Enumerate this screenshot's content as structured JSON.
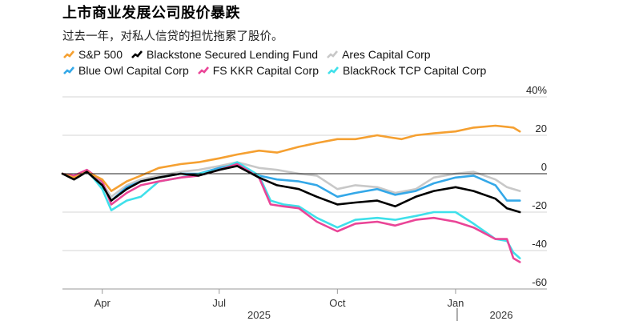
{
  "title": "上市商业发展公司股价暴跌",
  "subtitle": "过去一年，对私人信贷的担忧拖累了股价。",
  "colors": {
    "sp500": "#f5a031",
    "blackstone": "#000000",
    "ares": "#c8c8c8",
    "blueowl": "#34a8e8",
    "fskkr": "#ea4597",
    "blackrock": "#3fe0ea",
    "grid": "#d6d6d6",
    "zero": "#222222"
  },
  "chart_data": {
    "type": "line",
    "ylabel": "",
    "xlabel": "",
    "y_ticks": [
      "40%",
      "20",
      "0",
      "-20",
      "-40",
      "-60"
    ],
    "y_tick_values": [
      40,
      20,
      0,
      -20,
      -40,
      -60
    ],
    "ylim": [
      -60,
      40
    ],
    "x_ticks": [
      "Apr",
      "Jul",
      "Oct",
      "Jan"
    ],
    "x_tick_values": [
      "2025-04-01",
      "2025-07-01",
      "2025-10-01",
      "2026-01-01"
    ],
    "year_labels": [
      "2025",
      "2026"
    ],
    "xlim": [
      "2025-03-01",
      "2026-02-28"
    ],
    "series": [
      {
        "name": "S&P 500",
        "key": "sp500",
        "x": [
          "2025-03-01",
          "2025-03-10",
          "2025-03-20",
          "2025-04-01",
          "2025-04-08",
          "2025-04-20",
          "2025-05-01",
          "2025-05-15",
          "2025-06-01",
          "2025-06-15",
          "2025-07-01",
          "2025-07-15",
          "2025-08-01",
          "2025-08-15",
          "2025-09-01",
          "2025-09-15",
          "2025-10-01",
          "2025-10-15",
          "2025-11-01",
          "2025-11-10",
          "2025-11-20",
          "2025-12-01",
          "2025-12-15",
          "2026-01-01",
          "2026-01-15",
          "2026-02-01",
          "2026-02-15",
          "2026-02-20"
        ],
        "values": [
          0,
          -2,
          1,
          -3,
          -9,
          -4,
          -1,
          3,
          5,
          6,
          8,
          10,
          12,
          11,
          14,
          16,
          18,
          18,
          20,
          19,
          18,
          20,
          21,
          22,
          24,
          25,
          24,
          22
        ]
      },
      {
        "name": "Blackstone Secured Lending Fund",
        "key": "blackstone",
        "x": [
          "2025-03-01",
          "2025-03-10",
          "2025-03-20",
          "2025-04-01",
          "2025-04-08",
          "2025-04-20",
          "2025-05-01",
          "2025-05-15",
          "2025-06-01",
          "2025-06-15",
          "2025-07-01",
          "2025-07-15",
          "2025-08-01",
          "2025-08-15",
          "2025-09-01",
          "2025-09-15",
          "2025-10-01",
          "2025-10-15",
          "2025-11-01",
          "2025-11-15",
          "2025-12-01",
          "2025-12-15",
          "2026-01-01",
          "2026-01-15",
          "2026-02-01",
          "2026-02-10",
          "2026-02-20"
        ],
        "values": [
          0,
          -3,
          1,
          -6,
          -14,
          -8,
          -4,
          -2,
          0,
          -1,
          2,
          4,
          -2,
          -6,
          -8,
          -12,
          -16,
          -15,
          -14,
          -17,
          -12,
          -9,
          -7,
          -9,
          -13,
          -18,
          -20
        ]
      },
      {
        "name": "Ares Capital Corp",
        "key": "ares",
        "x": [
          "2025-03-01",
          "2025-03-10",
          "2025-03-20",
          "2025-04-01",
          "2025-04-08",
          "2025-04-20",
          "2025-05-01",
          "2025-05-15",
          "2025-06-01",
          "2025-06-15",
          "2025-07-01",
          "2025-07-15",
          "2025-08-01",
          "2025-08-15",
          "2025-09-01",
          "2025-09-15",
          "2025-10-01",
          "2025-10-15",
          "2025-11-01",
          "2025-11-15",
          "2025-12-01",
          "2025-12-15",
          "2026-01-01",
          "2026-01-15",
          "2026-02-01",
          "2026-02-10",
          "2026-02-20"
        ],
        "values": [
          0,
          -2,
          2,
          -5,
          -12,
          -6,
          -3,
          -1,
          1,
          2,
          4,
          6,
          3,
          2,
          0,
          -1,
          -8,
          -6,
          -7,
          -10,
          -8,
          -2,
          0,
          1,
          -3,
          -7,
          -9
        ]
      },
      {
        "name": "Blue Owl Capital Corp",
        "key": "blueowl",
        "x": [
          "2025-03-01",
          "2025-03-10",
          "2025-03-20",
          "2025-04-01",
          "2025-04-08",
          "2025-04-20",
          "2025-05-01",
          "2025-05-15",
          "2025-06-01",
          "2025-06-15",
          "2025-07-01",
          "2025-07-15",
          "2025-08-01",
          "2025-08-15",
          "2025-09-01",
          "2025-09-15",
          "2025-10-01",
          "2025-10-15",
          "2025-11-01",
          "2025-11-15",
          "2025-12-01",
          "2025-12-15",
          "2026-01-01",
          "2026-01-15",
          "2026-02-01",
          "2026-02-10",
          "2026-02-20"
        ],
        "values": [
          0,
          -2,
          1,
          -6,
          -14,
          -7,
          -4,
          -2,
          0,
          0,
          3,
          5,
          -1,
          -3,
          -4,
          -6,
          -12,
          -10,
          -8,
          -11,
          -9,
          -5,
          -2,
          -1,
          -6,
          -14,
          -14
        ]
      },
      {
        "name": "FS KKR Capital Corp",
        "key": "fskkr",
        "x": [
          "2025-03-01",
          "2025-03-10",
          "2025-03-20",
          "2025-04-01",
          "2025-04-08",
          "2025-04-20",
          "2025-05-01",
          "2025-05-15",
          "2025-06-01",
          "2025-06-15",
          "2025-07-01",
          "2025-07-15",
          "2025-08-01",
          "2025-08-10",
          "2025-08-20",
          "2025-09-01",
          "2025-09-15",
          "2025-10-01",
          "2025-10-15",
          "2025-11-01",
          "2025-11-15",
          "2025-12-01",
          "2025-12-15",
          "2026-01-01",
          "2026-01-15",
          "2026-02-01",
          "2026-02-10",
          "2026-02-15",
          "2026-02-20"
        ],
        "values": [
          0,
          -1,
          2,
          -4,
          -16,
          -10,
          -6,
          -4,
          -2,
          -1,
          2,
          5,
          -2,
          -16,
          -17,
          -18,
          -25,
          -30,
          -26,
          -25,
          -27,
          -24,
          -23,
          -25,
          -28,
          -34,
          -34,
          -44,
          -46
        ]
      },
      {
        "name": "BlackRock TCP Capital Corp",
        "key": "blackrock",
        "x": [
          "2025-03-01",
          "2025-03-10",
          "2025-03-20",
          "2025-04-01",
          "2025-04-08",
          "2025-04-20",
          "2025-05-01",
          "2025-05-15",
          "2025-06-01",
          "2025-06-15",
          "2025-07-01",
          "2025-07-15",
          "2025-08-01",
          "2025-08-10",
          "2025-08-20",
          "2025-09-01",
          "2025-09-15",
          "2025-10-01",
          "2025-10-15",
          "2025-11-01",
          "2025-11-15",
          "2025-12-01",
          "2025-12-15",
          "2026-01-01",
          "2026-01-15",
          "2026-02-01",
          "2026-02-10",
          "2026-02-15",
          "2026-02-20"
        ],
        "values": [
          0,
          -2,
          2,
          -8,
          -19,
          -14,
          -12,
          -4,
          -2,
          0,
          2,
          6,
          -1,
          -14,
          -16,
          -17,
          -23,
          -28,
          -24,
          -23,
          -24,
          -22,
          -20,
          -20,
          -26,
          -34,
          -35,
          -41,
          -44
        ]
      }
    ]
  },
  "legend": [
    [
      {
        "key": "sp500",
        "label": "S&P 500"
      },
      {
        "key": "blackstone",
        "label": "Blackstone Secured Lending Fund"
      },
      {
        "key": "ares",
        "label": "Ares Capital Corp"
      }
    ],
    [
      {
        "key": "blueowl",
        "label": "Blue Owl Capital Corp"
      },
      {
        "key": "fskkr",
        "label": "FS KKR Capital Corp"
      },
      {
        "key": "blackrock",
        "label": "BlackRock TCP Capital Corp"
      }
    ]
  ]
}
